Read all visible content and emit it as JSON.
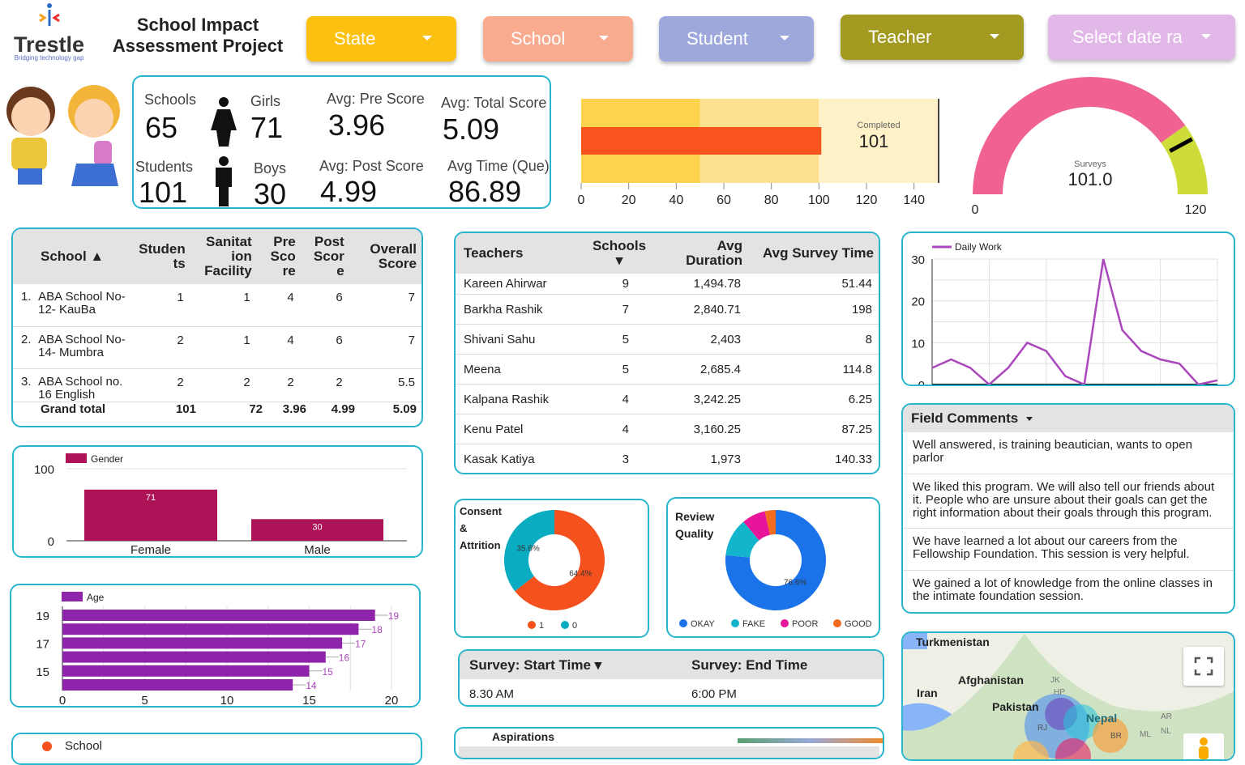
{
  "header": {
    "logo_text": "Trestle",
    "logo_tagline": "Bridging technology gap",
    "title": "School Impact Assessment Project"
  },
  "filters": [
    {
      "label": "State",
      "color": "#fcc110"
    },
    {
      "label": "School",
      "color": "#f9ab90"
    },
    {
      "label": "Student",
      "color": "#9fa8dc"
    },
    {
      "label": "Teacher",
      "color": "#a39a22"
    },
    {
      "label": "Select date ra",
      "color": "#e2b8e8"
    }
  ],
  "kpis": {
    "schools_label": "Schools",
    "schools": "65",
    "students_label": "Students",
    "students": "101",
    "girls_label": "Girls",
    "girls": "71",
    "boys_label": "Boys",
    "boys": "30",
    "pre_label": "Avg: Pre Score",
    "pre": "3.96",
    "post_label": "Avg: Post Score",
    "post": "4.99",
    "total_label": "Avg: Total Score",
    "total": "5.09",
    "time_label": "Avg Time (Que)",
    "time": "86.89"
  },
  "school_table": {
    "headers": [
      "School ▲",
      "Studen ts",
      "Sanitat ion Facility",
      "Pre Sco re",
      "Post Scor e",
      "Overall Score"
    ],
    "rows": [
      [
        "1.",
        "ABA School No- 12- KauBa",
        "1",
        "1",
        "4",
        "6",
        "7"
      ],
      [
        "2.",
        "ABA School No- 14- Mumbra",
        "2",
        "1",
        "4",
        "6",
        "7"
      ],
      [
        "3.",
        "ABA School no. 16 English",
        "2",
        "2",
        "2",
        "2",
        "5.5"
      ]
    ],
    "total": [
      "Grand total",
      "101",
      "72",
      "3.96",
      "4.99",
      "5.09"
    ]
  },
  "teachers_table": {
    "headers": [
      "Teachers",
      "Schools ▾",
      "Avg Duration",
      "Avg Survey Time"
    ],
    "rows": [
      [
        "Kareen Ahirwar",
        "9",
        "1,494.78",
        "51.44"
      ],
      [
        "Barkha Rashik",
        "7",
        "2,840.71",
        "198"
      ],
      [
        "Shivani Sahu",
        "5",
        "2,403",
        "8"
      ],
      [
        "Meena",
        "5",
        "2,685.4",
        "114.8"
      ],
      [
        "Kalpana Rashik",
        "4",
        "3,242.25",
        "6.25"
      ],
      [
        "Kenu Patel",
        "4",
        "3,160.25",
        "87.25"
      ],
      [
        "Kasak Katiya",
        "3",
        "1,973",
        "140.33"
      ]
    ]
  },
  "survey_time": {
    "start_header": "Survey: Start Time ▾",
    "end_header": "Survey: End Time",
    "start": "8.30 AM",
    "end": "6:00 PM"
  },
  "aspirations": {
    "title": "Aspirations"
  },
  "school_legend": {
    "label": "School",
    "color": "#f4511e"
  },
  "field_comments": {
    "title": "Field Comments",
    "items": [
      "Well answered, is training beautician, wants to open parlor",
      "We liked this program. We will also tell our friends about it. People who are unsure about their goals can get the right information about their goals through this program.",
      "We have learned a lot about our careers from the Fellowship Foundation. This session is very helpful.",
      "We gained a lot of knowledge from the online classes in the intimate foundation session."
    ]
  },
  "map": {
    "labels": [
      "Turkmenistan",
      "Afghanistan",
      "Iran",
      "Pakistan",
      "Nepal",
      "JK",
      "HP",
      "RJ",
      "BR",
      "AR",
      "ML",
      "NL"
    ]
  },
  "chart_data": [
    {
      "id": "bullet",
      "type": "bar",
      "label": "Completed",
      "value": 101,
      "value_text": "101",
      "ranges": [
        50,
        100,
        150
      ],
      "range_colors": [
        "#fdd24e",
        "#fde18f",
        "#fef0c7"
      ],
      "bar_color": "#f9541e",
      "ticks": [
        0,
        20,
        40,
        60,
        80,
        100,
        120,
        140
      ],
      "xlim": [
        0,
        150
      ]
    },
    {
      "id": "gauge",
      "type": "gauge",
      "label": "Surveys",
      "value": 101,
      "value_text": "101.0",
      "min": 0,
      "max": 120,
      "min_label": "0",
      "max_label": "120",
      "bands": [
        {
          "to": 96,
          "color": "#f06292"
        },
        {
          "to": 120,
          "color": "#cddc39"
        }
      ]
    },
    {
      "id": "daily",
      "type": "line",
      "series": [
        {
          "name": "Daily Work",
          "color": "#ab47bc",
          "values": [
            4,
            6,
            4,
            0,
            4,
            10,
            8,
            2,
            0,
            30,
            13,
            8,
            6,
            5,
            0,
            1
          ]
        }
      ],
      "ylim": [
        0,
        30
      ],
      "yticks": [
        0,
        10,
        20,
        30
      ],
      "grid": true,
      "legend": "top-left"
    },
    {
      "id": "gender",
      "type": "bar",
      "series": [
        {
          "name": "Gender",
          "color": "#ad1457"
        }
      ],
      "categories": [
        "Female",
        "Male"
      ],
      "values": [
        71,
        30
      ],
      "ylim": [
        0,
        100
      ],
      "yticks": [
        0,
        100
      ]
    },
    {
      "id": "age",
      "type": "bar",
      "orientation": "horizontal",
      "series": [
        {
          "name": "Age",
          "color": "#8e24aa"
        }
      ],
      "categories": [
        "19",
        "18",
        "17",
        "16",
        "15",
        "14"
      ],
      "values": [
        19,
        18,
        17,
        16,
        15,
        14
      ],
      "ytick_labels": [
        "19",
        "17",
        "15"
      ],
      "xlim": [
        0,
        20
      ],
      "xticks": [
        0,
        5,
        10,
        15,
        20
      ]
    },
    {
      "id": "consent",
      "type": "pie",
      "title": "Consent & Attrition",
      "slices": [
        {
          "label": "1",
          "value": 64.4,
          "color": "#f4511e",
          "text": "64.4%"
        },
        {
          "label": "0",
          "value": 35.6,
          "color": "#0aacc1",
          "text": "35.6%"
        }
      ]
    },
    {
      "id": "review",
      "type": "pie",
      "title": "Review Quality",
      "slices": [
        {
          "label": "OKAY",
          "value": 76.6,
          "color": "#1a73e8",
          "text": "76.6%"
        },
        {
          "label": "FAKE",
          "value": 12.3,
          "color": "#12b5cb",
          "text": ""
        },
        {
          "label": "POOR",
          "value": 7.6,
          "color": "#e8149a",
          "text": ""
        },
        {
          "label": "GOOD",
          "value": 3.5,
          "color": "#f36b1c",
          "text": ""
        }
      ]
    }
  ]
}
